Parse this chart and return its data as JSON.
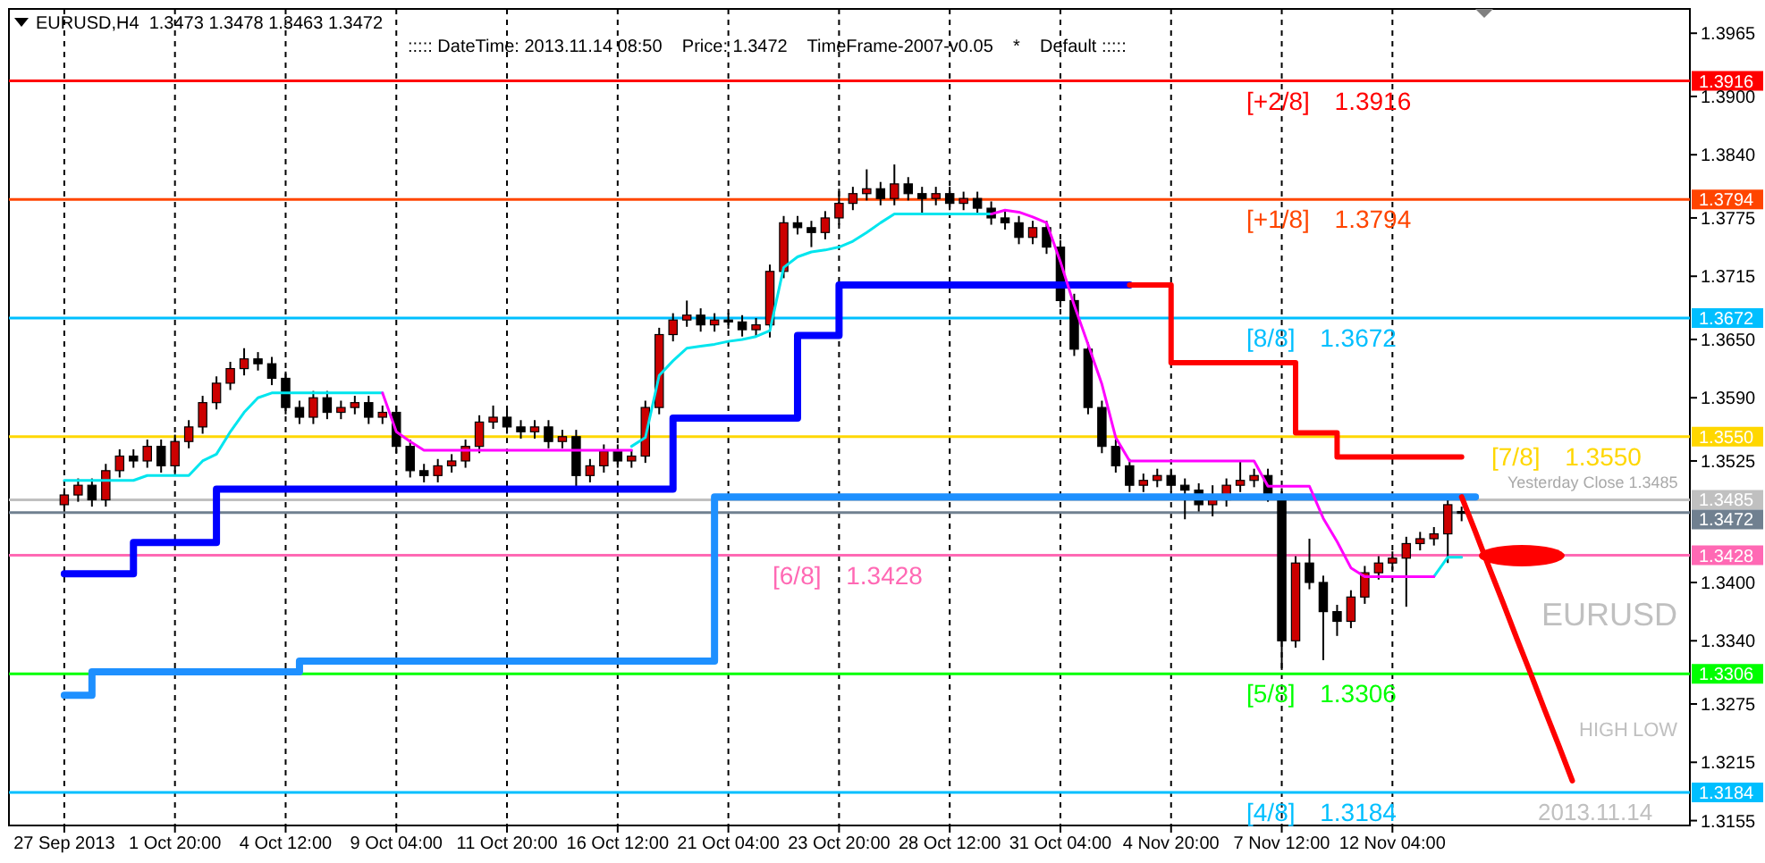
{
  "chart_data": {
    "type": "candlestick",
    "title": "EURUSD,H4  1.3473 1.3478 1.3463 1.3472",
    "subtitle": "::::: DateTime: 2013.11.14 08:50    Price: 1.3472    TimeFrame-2007-v0.05    *    Default :::::",
    "categories": [
      "27 Sep 2013",
      null,
      null,
      null,
      null,
      null,
      null,
      null,
      "1 Oct 20:00",
      null,
      null,
      null,
      null,
      null,
      null,
      null,
      "4 Oct 12:00",
      null,
      null,
      null,
      null,
      null,
      null,
      null,
      "9 Oct 04:00",
      null,
      null,
      null,
      null,
      null,
      null,
      null,
      "11 Oct 20:00",
      null,
      null,
      null,
      null,
      null,
      null,
      null,
      "16 Oct 12:00",
      null,
      null,
      null,
      null,
      null,
      null,
      null,
      "21 Oct 04:00",
      null,
      null,
      null,
      null,
      null,
      null,
      null,
      "23 Oct 20:00",
      null,
      null,
      null,
      null,
      null,
      null,
      null,
      "28 Oct 12:00",
      null,
      null,
      null,
      null,
      null,
      null,
      null,
      "31 Oct 04:00",
      null,
      null,
      null,
      null,
      null,
      null,
      null,
      "4 Nov 20:00",
      null,
      null,
      null,
      null,
      null,
      null,
      null,
      "7 Nov 12:00",
      null,
      null,
      null,
      null,
      null,
      null,
      null,
      "12 Nov 04:00",
      null,
      null,
      null,
      null,
      null,
      null,
      null,
      null,
      null,
      null,
      null,
      null,
      null,
      null,
      null,
      null,
      null,
      null,
      null,
      null,
      null
    ],
    "ohlc": [
      [
        1.348,
        1.3497,
        1.3473,
        1.349
      ],
      [
        1.349,
        1.3507,
        1.3483,
        1.35
      ],
      [
        1.35,
        1.3507,
        1.3478,
        1.3485
      ],
      [
        1.3485,
        1.3522,
        1.3478,
        1.3515
      ],
      [
        1.3515,
        1.3537,
        1.3508,
        1.353
      ],
      [
        1.353,
        1.3537,
        1.3518,
        1.3525
      ],
      [
        1.3525,
        1.3547,
        1.3518,
        1.354
      ],
      [
        1.354,
        1.3547,
        1.3513,
        1.352
      ],
      [
        1.352,
        1.3552,
        1.3513,
        1.3545
      ],
      [
        1.3545,
        1.3567,
        1.3538,
        1.356
      ],
      [
        1.356,
        1.3592,
        1.3553,
        1.3585
      ],
      [
        1.3585,
        1.3612,
        1.3578,
        1.3605
      ],
      [
        1.3605,
        1.3627,
        1.3598,
        1.362
      ],
      [
        1.362,
        1.3641,
        1.3613,
        1.363
      ],
      [
        1.363,
        1.3637,
        1.3618,
        1.3625
      ],
      [
        1.3625,
        1.3632,
        1.3603,
        1.361
      ],
      [
        1.361,
        1.3617,
        1.3573,
        1.358
      ],
      [
        1.358,
        1.3587,
        1.3563,
        1.357
      ],
      [
        1.357,
        1.3597,
        1.3563,
        1.359
      ],
      [
        1.359,
        1.3597,
        1.3568,
        1.3575
      ],
      [
        1.3575,
        1.3587,
        1.3568,
        1.358
      ],
      [
        1.358,
        1.3592,
        1.3573,
        1.3585
      ],
      [
        1.3585,
        1.3592,
        1.3563,
        1.357
      ],
      [
        1.357,
        1.3582,
        1.3563,
        1.3575
      ],
      [
        1.3575,
        1.3582,
        1.3533,
        1.354
      ],
      [
        1.354,
        1.3547,
        1.3508,
        1.3515
      ],
      [
        1.3515,
        1.3522,
        1.3503,
        1.351
      ],
      [
        1.351,
        1.3527,
        1.3503,
        1.352
      ],
      [
        1.352,
        1.3532,
        1.3513,
        1.3525
      ],
      [
        1.3525,
        1.3547,
        1.3518,
        1.354
      ],
      [
        1.354,
        1.3572,
        1.3533,
        1.3565
      ],
      [
        1.3565,
        1.3582,
        1.3558,
        1.357
      ],
      [
        1.357,
        1.3577,
        1.3553,
        1.356
      ],
      [
        1.356,
        1.3567,
        1.3548,
        1.3555
      ],
      [
        1.3555,
        1.3567,
        1.3548,
        1.356
      ],
      [
        1.356,
        1.3567,
        1.3538,
        1.3545
      ],
      [
        1.3545,
        1.3557,
        1.3538,
        1.355
      ],
      [
        1.355,
        1.3557,
        1.3495,
        1.351
      ],
      [
        1.351,
        1.3527,
        1.3503,
        1.352
      ],
      [
        1.352,
        1.3542,
        1.3513,
        1.3535
      ],
      [
        1.3535,
        1.3542,
        1.3518,
        1.3525
      ],
      [
        1.3525,
        1.3537,
        1.3518,
        1.353
      ],
      [
        1.353,
        1.3587,
        1.3523,
        1.358
      ],
      [
        1.358,
        1.3662,
        1.3573,
        1.3655
      ],
      [
        1.3655,
        1.3677,
        1.3648,
        1.367
      ],
      [
        1.367,
        1.369,
        1.3663,
        1.3675
      ],
      [
        1.3675,
        1.3682,
        1.3658,
        1.3665
      ],
      [
        1.3665,
        1.3677,
        1.3658,
        1.367
      ],
      [
        1.367,
        1.3677,
        1.3661,
        1.3668
      ],
      [
        1.3668,
        1.3675,
        1.3653,
        1.366
      ],
      [
        1.366,
        1.3672,
        1.3653,
        1.3665
      ],
      [
        1.3665,
        1.3727,
        1.3652,
        1.372
      ],
      [
        1.372,
        1.3777,
        1.3713,
        1.377
      ],
      [
        1.377,
        1.3777,
        1.3758,
        1.3765
      ],
      [
        1.3765,
        1.3772,
        1.3745,
        1.376
      ],
      [
        1.376,
        1.3782,
        1.3753,
        1.3775
      ],
      [
        1.3775,
        1.3805,
        1.3768,
        1.379
      ],
      [
        1.379,
        1.3807,
        1.3783,
        1.38
      ],
      [
        1.38,
        1.3825,
        1.3793,
        1.3805
      ],
      [
        1.3805,
        1.3812,
        1.3788,
        1.3795
      ],
      [
        1.3795,
        1.383,
        1.3788,
        1.381
      ],
      [
        1.381,
        1.3817,
        1.3793,
        1.38
      ],
      [
        1.38,
        1.3807,
        1.378,
        1.3795
      ],
      [
        1.3795,
        1.3807,
        1.3788,
        1.38
      ],
      [
        1.38,
        1.3807,
        1.3783,
        1.379
      ],
      [
        1.379,
        1.3802,
        1.3783,
        1.3795
      ],
      [
        1.3795,
        1.3802,
        1.3778,
        1.3785
      ],
      [
        1.3785,
        1.3792,
        1.3768,
        1.3775
      ],
      [
        1.3775,
        1.3782,
        1.3763,
        1.377
      ],
      [
        1.377,
        1.3777,
        1.3748,
        1.3755
      ],
      [
        1.3755,
        1.3772,
        1.3748,
        1.3765
      ],
      [
        1.3765,
        1.3772,
        1.3738,
        1.3745
      ],
      [
        1.3745,
        1.3752,
        1.3683,
        1.369
      ],
      [
        1.369,
        1.3697,
        1.3633,
        1.364
      ],
      [
        1.364,
        1.3647,
        1.3573,
        1.358
      ],
      [
        1.358,
        1.3587,
        1.3533,
        1.354
      ],
      [
        1.354,
        1.3547,
        1.3513,
        1.352
      ],
      [
        1.352,
        1.3527,
        1.3493,
        1.35
      ],
      [
        1.35,
        1.3512,
        1.3493,
        1.3505
      ],
      [
        1.3505,
        1.3517,
        1.3498,
        1.351
      ],
      [
        1.351,
        1.3517,
        1.3493,
        1.35
      ],
      [
        1.35,
        1.3507,
        1.3465,
        1.3495
      ],
      [
        1.3495,
        1.3502,
        1.3473,
        1.348
      ],
      [
        1.348,
        1.35,
        1.3468,
        1.3485
      ],
      [
        1.3485,
        1.3507,
        1.3478,
        1.35
      ],
      [
        1.35,
        1.3525,
        1.3493,
        1.3505
      ],
      [
        1.3505,
        1.3517,
        1.3498,
        1.351
      ],
      [
        1.351,
        1.3517,
        1.3483,
        1.349
      ],
      [
        1.349,
        1.3497,
        1.331,
        1.334
      ],
      [
        1.334,
        1.3427,
        1.3333,
        1.342
      ],
      [
        1.342,
        1.3445,
        1.3393,
        1.34
      ],
      [
        1.34,
        1.3407,
        1.332,
        1.337
      ],
      [
        1.337,
        1.3377,
        1.3345,
        1.336
      ],
      [
        1.336,
        1.3392,
        1.3353,
        1.3385
      ],
      [
        1.3385,
        1.3417,
        1.3378,
        1.341
      ],
      [
        1.341,
        1.3427,
        1.3403,
        1.342
      ],
      [
        1.342,
        1.3432,
        1.3413,
        1.3425
      ],
      [
        1.3425,
        1.3447,
        1.3375,
        1.344
      ],
      [
        1.344,
        1.3452,
        1.3433,
        1.3445
      ],
      [
        1.3445,
        1.3457,
        1.3438,
        1.345
      ],
      [
        1.345,
        1.349,
        1.342,
        1.348
      ],
      [
        1.3473,
        1.3478,
        1.3463,
        1.3472
      ],
      null,
      null,
      null,
      null,
      null,
      null,
      null,
      null,
      null,
      null,
      null,
      null,
      null,
      null,
      null,
      null
    ],
    "colors": [
      "#cc0000",
      "#cc0000",
      "#000000",
      "#cc0000",
      "#cc0000",
      "#000000",
      "#cc0000",
      "#000000",
      "#cc0000",
      "#cc0000",
      "#cc0000",
      "#cc0000",
      "#cc0000",
      "#cc0000",
      "#000000",
      "#000000",
      "#000000",
      "#000000",
      "#cc0000",
      "#000000",
      "#cc0000",
      "#cc0000",
      "#000000",
      "#cc0000",
      "#000000",
      "#000000",
      "#000000",
      "#cc0000",
      "#cc0000",
      "#cc0000",
      "#cc0000",
      "#cc0000",
      "#000000",
      "#000000",
      "#cc0000",
      "#000000",
      "#cc0000",
      "#000000",
      "#cc0000",
      "#cc0000",
      "#000000",
      "#cc0000",
      "#cc0000",
      "#cc0000",
      "#cc0000",
      "#cc0000",
      "#000000",
      "#cc0000",
      "#000000",
      "#000000",
      "#cc0000",
      "#cc0000",
      "#cc0000",
      "#000000",
      "#000000",
      "#cc0000",
      "#cc0000",
      "#cc0000",
      "#cc0000",
      "#000000",
      "#cc0000",
      "#000000",
      "#000000",
      "#cc0000",
      "#000000",
      "#cc0000",
      "#000000",
      "#000000",
      "#000000",
      "#000000",
      "#cc0000",
      "#000000",
      "#000000",
      "#000000",
      "#000000",
      "#000000",
      "#000000",
      "#000000",
      "#cc0000",
      "#cc0000",
      "#000000",
      "#000000",
      "#000000",
      "#cc0000",
      "#cc0000",
      "#cc0000",
      "#cc0000",
      "#000000",
      "#000000",
      "#cc0000",
      "#000000",
      "#000000",
      "#000000",
      "#cc0000",
      "#cc0000",
      "#cc0000",
      "#cc0000",
      "#cc0000",
      "#cc0000",
      "#cc0000",
      "#cc0000",
      "#000000",
      null,
      null,
      null,
      null,
      null,
      null,
      null,
      null,
      null,
      null,
      null,
      null,
      null,
      null,
      null,
      null
    ],
    "series": [
      {
        "type": "step",
        "color": "#0000ff",
        "values": [
          1.3409,
          1.3409,
          1.3409,
          1.3409,
          1.3409,
          1.3441,
          1.3441,
          1.3441,
          1.3441,
          1.3441,
          1.3441,
          1.3496,
          1.3496,
          1.3496,
          1.3496,
          1.3496,
          1.3496,
          1.3496,
          1.3496,
          1.3496,
          1.3496,
          1.3496,
          1.3496,
          1.3496,
          1.3496,
          1.3496,
          1.3496,
          1.3496,
          1.3496,
          1.3496,
          1.3496,
          1.3496,
          1.3496,
          1.3496,
          1.3496,
          1.3496,
          1.3496,
          1.3496,
          1.3496,
          1.3496,
          1.3496,
          1.3496,
          1.3496,
          1.3496,
          1.3569,
          1.3569,
          1.3569,
          1.3569,
          1.3569,
          1.3569,
          1.3569,
          1.3569,
          1.3569,
          1.3654,
          1.3654,
          1.3654,
          1.3706,
          1.3706,
          1.3706,
          1.3706,
          1.3706,
          1.3706,
          1.3706,
          1.3706,
          1.3706,
          1.3706,
          1.3706,
          1.3706,
          1.3706,
          1.3706,
          1.3706,
          1.3706,
          1.3706,
          1.3706,
          1.3706,
          1.3706,
          1.3706,
          1.3706,
          null,
          null,
          null,
          null,
          null,
          null,
          null,
          null,
          null,
          null,
          null,
          null,
          null,
          null,
          null,
          null,
          null,
          null,
          null,
          null,
          null,
          null,
          null,
          null,
          null,
          null,
          null,
          null,
          null,
          null,
          null,
          null,
          null,
          null,
          null,
          null,
          null,
          null,
          null,
          null
        ]
      },
      {
        "type": "step",
        "color": "#1e90ff",
        "values": [
          1.3284,
          1.3284,
          1.3308,
          1.3308,
          1.3308,
          1.3308,
          1.3308,
          1.3308,
          1.3308,
          1.3308,
          1.3308,
          1.3308,
          1.3308,
          1.3308,
          1.3308,
          1.3308,
          1.3308,
          1.3319,
          1.3319,
          1.3319,
          1.3319,
          1.3319,
          1.3319,
          1.3319,
          1.3319,
          1.3319,
          1.3319,
          1.3319,
          1.3319,
          1.3319,
          1.3319,
          1.3319,
          1.3319,
          1.3319,
          1.3319,
          1.3319,
          1.3319,
          1.3319,
          1.3319,
          1.3319,
          1.3319,
          1.3319,
          1.3319,
          1.3319,
          1.3319,
          1.3319,
          1.3319,
          1.3488,
          1.3488,
          1.3488,
          1.3488,
          1.3488,
          1.3488,
          1.3488,
          1.3488,
          1.3488,
          1.3488,
          1.3488,
          1.3488,
          1.3488,
          1.3488,
          1.3488,
          1.3488,
          1.3488,
          1.3488,
          1.3488,
          1.3488,
          1.3488,
          1.3488,
          1.3488,
          1.3488,
          1.3488,
          1.3488,
          1.3488,
          1.3488,
          1.3488,
          1.3488,
          1.3488,
          1.3488,
          1.3488,
          1.3488,
          1.3488,
          1.3488,
          1.3488,
          1.3488,
          1.3488,
          1.3488,
          1.3488,
          1.3488,
          1.3488,
          1.3488,
          1.3488,
          1.3488,
          1.3488,
          1.3488,
          1.3488,
          1.3488,
          1.3488,
          1.3488,
          1.3488,
          1.3488,
          1.3488,
          1.3488,
          null,
          null,
          null,
          null,
          null,
          null,
          null,
          null,
          null,
          null,
          null,
          null,
          null,
          null,
          null
        ]
      },
      {
        "type": "step",
        "color": "#ff0000",
        "values": [
          null,
          null,
          null,
          null,
          null,
          null,
          null,
          null,
          null,
          null,
          null,
          null,
          null,
          null,
          null,
          null,
          null,
          null,
          null,
          null,
          null,
          null,
          null,
          null,
          null,
          null,
          null,
          null,
          null,
          null,
          null,
          null,
          null,
          null,
          null,
          null,
          null,
          null,
          null,
          null,
          null,
          null,
          null,
          null,
          null,
          null,
          null,
          null,
          null,
          null,
          null,
          null,
          null,
          null,
          null,
          null,
          null,
          null,
          null,
          null,
          null,
          null,
          null,
          null,
          null,
          null,
          null,
          null,
          null,
          null,
          null,
          null,
          null,
          null,
          null,
          null,
          null,
          1.3706,
          1.3706,
          1.3706,
          1.3626,
          1.3626,
          1.3626,
          1.3626,
          1.3626,
          1.3626,
          1.3626,
          1.3626,
          1.3626,
          1.3554,
          1.3554,
          1.3554,
          1.3529,
          1.3529,
          1.3529,
          1.3529,
          1.3529,
          1.3529,
          1.3529,
          1.3529,
          1.3529,
          1.3529,
          null,
          null,
          null,
          null,
          null,
          null,
          null,
          null,
          null,
          null,
          null,
          null,
          null,
          null,
          null,
          null
        ]
      },
      {
        "type": "line",
        "color": "#00e5ee",
        "values": [
          1.3505,
          1.3505,
          1.3505,
          1.3505,
          1.3505,
          1.3505,
          1.351,
          1.351,
          1.351,
          1.351,
          1.3525,
          1.3532,
          1.3555,
          1.3575,
          1.359,
          1.3595,
          1.3595,
          1.3595,
          1.3595,
          1.3595,
          1.3595,
          1.3595,
          1.3595,
          1.3595,
          null,
          null,
          null,
          null,
          null,
          null,
          null,
          null,
          null,
          null,
          null,
          null,
          null,
          null,
          null,
          null,
          null,
          1.354,
          1.3549,
          1.3613,
          1.3628,
          1.3641,
          1.3643,
          1.3645,
          1.3648,
          1.365,
          1.3653,
          1.3659,
          1.3724,
          1.3735,
          1.374,
          1.3742,
          1.3745,
          1.3751,
          1.376,
          1.377,
          1.3779,
          1.3779,
          1.3779,
          1.3779,
          1.3779,
          1.3779,
          1.3779,
          1.3779,
          null,
          null,
          null,
          null,
          null,
          null,
          null,
          null,
          null,
          null,
          null,
          null,
          null,
          null,
          null,
          null,
          null,
          null,
          null,
          null,
          null,
          null,
          null,
          null,
          null,
          null,
          null,
          null,
          null,
          null,
          null,
          1.3406,
          1.3426,
          1.3426,
          null,
          null,
          null,
          null,
          null,
          null,
          null,
          null,
          null,
          null,
          null,
          null,
          null,
          null,
          null,
          null
        ]
      },
      {
        "type": "line",
        "color": "#ff00ff",
        "values": [
          null,
          null,
          null,
          null,
          null,
          null,
          null,
          null,
          null,
          null,
          null,
          null,
          null,
          null,
          null,
          null,
          null,
          null,
          null,
          null,
          null,
          null,
          null,
          1.3595,
          1.3555,
          1.3545,
          1.3536,
          1.3536,
          1.3536,
          1.3536,
          1.3536,
          1.3536,
          1.3536,
          1.3536,
          1.3536,
          1.3536,
          1.3536,
          1.3536,
          1.3536,
          1.3536,
          1.3536,
          1.3536,
          null,
          null,
          null,
          null,
          null,
          null,
          null,
          null,
          null,
          null,
          null,
          null,
          null,
          null,
          null,
          null,
          null,
          null,
          null,
          null,
          null,
          null,
          null,
          null,
          null,
          1.3779,
          1.3783,
          1.3781,
          1.3776,
          1.377,
          1.373,
          1.3685,
          1.3645,
          1.3604,
          1.3549,
          1.3525,
          1.3525,
          1.3525,
          1.3525,
          1.3525,
          1.3525,
          1.3525,
          1.3525,
          1.3525,
          1.3525,
          1.3499,
          1.3499,
          1.3499,
          1.3499,
          1.3466,
          1.3442,
          1.3415,
          1.3406,
          1.3406,
          1.3406,
          1.3406,
          1.3406,
          1.3406,
          null,
          null,
          null,
          null,
          null,
          null,
          null,
          null,
          null,
          null,
          null,
          null,
          null,
          null,
          null,
          null,
          null,
          null
        ]
      },
      {
        "type": "line",
        "color": "#ff0000",
        "values": [
          null,
          null,
          null,
          null,
          null,
          null,
          null,
          null,
          null,
          null,
          null,
          null,
          null,
          null,
          null,
          null,
          null,
          null,
          null,
          null,
          null,
          null,
          null,
          null,
          null,
          null,
          null,
          null,
          null,
          null,
          null,
          null,
          null,
          null,
          null,
          null,
          null,
          null,
          null,
          null,
          null,
          null,
          null,
          null,
          null,
          null,
          null,
          null,
          null,
          null,
          null,
          null,
          null,
          null,
          null,
          null,
          null,
          null,
          null,
          null,
          null,
          null,
          null,
          null,
          null,
          null,
          null,
          null,
          null,
          null,
          null,
          null,
          null,
          null,
          null,
          null,
          null,
          null,
          null,
          null,
          null,
          null,
          null,
          null,
          null,
          null,
          null,
          null,
          null,
          null,
          null,
          null,
          null,
          null,
          null,
          null,
          null,
          null,
          null,
          null,
          null,
          1.3488,
          1.3452,
          1.3415,
          1.3379,
          1.3342,
          1.3306,
          1.3269,
          1.3233,
          1.3196,
          null,
          null,
          null,
          null,
          null,
          null,
          null,
          null
        ]
      }
    ],
    "ylim": [
      1.315,
      1.399
    ],
    "yticks": [
      {
        "value": 1.3965,
        "label": "1.3965"
      },
      {
        "value": 1.3916,
        "label": "1.3916"
      },
      {
        "value": 1.39,
        "label": "1.3900"
      },
      {
        "value": 1.384,
        "label": "1.3840"
      },
      {
        "value": 1.3794,
        "label": "1.3794"
      },
      {
        "value": 1.3775,
        "label": "1.3775"
      },
      {
        "value": 1.3715,
        "label": "1.3715"
      },
      {
        "value": 1.3672,
        "label": "1.3672"
      },
      {
        "value": 1.365,
        "label": "1.3650"
      },
      {
        "value": 1.359,
        "label": "1.3590"
      },
      {
        "value": 1.355,
        "label": "1.3550"
      },
      {
        "value": 1.3525,
        "label": "1.3525"
      },
      {
        "value": 1.3485,
        "label": "1.3485"
      },
      {
        "value": 1.3472,
        "label": "1.3472"
      },
      {
        "value": 1.3428,
        "label": "1.3428"
      },
      {
        "value": 1.34,
        "label": "1.3400"
      },
      {
        "value": 1.334,
        "label": "1.3340"
      },
      {
        "value": 1.3306,
        "label": "1.3306"
      },
      {
        "value": 1.3275,
        "label": "1.3275"
      },
      {
        "value": 1.3215,
        "label": "1.3215"
      },
      {
        "value": 1.3184,
        "label": "1.3184"
      },
      {
        "value": 1.3155,
        "label": "1.3155"
      }
    ],
    "ref_lines": [
      {
        "axis": "y",
        "value": 1.3916,
        "label": "[+2/8] 1.3916",
        "color": "#ff0000"
      },
      {
        "axis": "y",
        "value": 1.3794,
        "label": "[+1/8] 1.3794",
        "color": "#ff4500"
      },
      {
        "axis": "y",
        "value": 1.3672,
        "label": "[8/8] 1.3672",
        "color": "#00bfff"
      },
      {
        "axis": "y",
        "value": 1.355,
        "label": "[7/8] 1.3550",
        "color": "#ffd700"
      },
      {
        "axis": "y",
        "value": 1.3485,
        "color": "#c0c0c0"
      },
      {
        "axis": "y",
        "value": 1.3472,
        "color": "#708090"
      },
      {
        "axis": "y",
        "value": 1.3428,
        "label": "[6/8] 1.3428",
        "color": "#ff69b4"
      },
      {
        "axis": "y",
        "value": 1.3306,
        "label": "[5/8] 1.3306",
        "color": "#00ff00"
      },
      {
        "axis": "y",
        "value": 1.3184,
        "label": "[4/8] 1.3184",
        "color": "#00bfff"
      }
    ],
    "annotations": [
      "Yesterday Close 1.3485",
      "EURUSD",
      "HIGH",
      "LOW",
      "2013.11.14"
    ],
    "grid": "x"
  }
}
